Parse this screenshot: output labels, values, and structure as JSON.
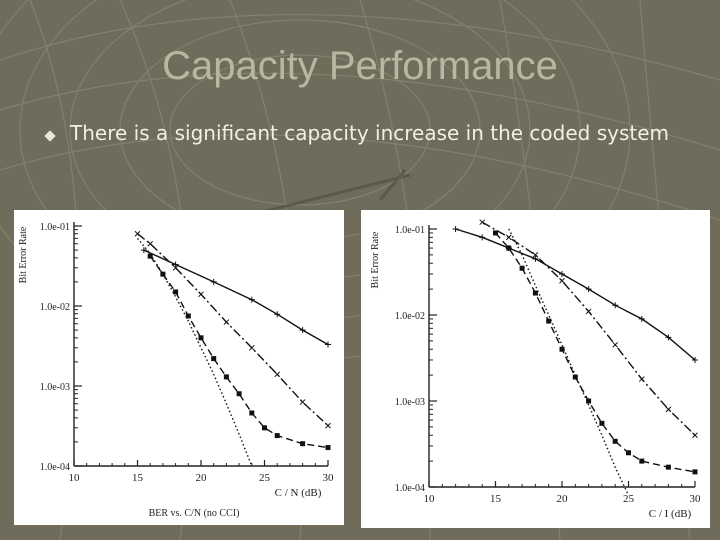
{
  "slide": {
    "title": "Capacity Performance",
    "bullets": [
      {
        "text": "There is a significant capacity increase in the coded system"
      }
    ]
  },
  "chart_data": [
    {
      "type": "line",
      "title": "",
      "caption": "BER vs. C/N (no CCI)",
      "xlabel": "C / N (dB)",
      "ylabel": "Bit Error Rate",
      "xlim": [
        10,
        30
      ],
      "ylim": [
        0.0001,
        0.1
      ],
      "yscale": "log",
      "x_ticks": [
        "10",
        "15",
        "20",
        "25",
        "30"
      ],
      "y_ticks": [
        "1.0e-01",
        "1.0e-02",
        "1.0e-03",
        "1.0e-04"
      ],
      "grid": false,
      "series": [
        {
          "style": "solid",
          "marker": "plus",
          "x": [
            15.5,
            18,
            21,
            24,
            26,
            28,
            30
          ],
          "y": [
            0.05,
            0.033,
            0.02,
            0.012,
            0.0079,
            0.005,
            0.0033
          ]
        },
        {
          "style": "dashdot",
          "marker": "x",
          "x": [
            15,
            16,
            18,
            20,
            22,
            24,
            26,
            28,
            30
          ],
          "y": [
            0.08,
            0.06,
            0.03,
            0.014,
            0.0063,
            0.003,
            0.0014,
            0.00063,
            0.00032
          ]
        },
        {
          "style": "dashed",
          "marker": "square",
          "x": [
            16,
            17,
            18,
            19,
            20,
            21,
            22,
            23,
            24,
            25,
            26,
            28,
            30
          ],
          "y": [
            0.042,
            0.025,
            0.015,
            0.0075,
            0.004,
            0.0022,
            0.0013,
            0.0008,
            0.00046,
            0.0003,
            0.00024,
            0.00019,
            0.00017
          ]
        },
        {
          "style": "dotted",
          "marker": "none",
          "x": [
            15,
            16,
            17,
            18,
            19,
            20,
            21,
            22,
            23,
            24
          ],
          "y": [
            0.07,
            0.045,
            0.025,
            0.013,
            0.0065,
            0.003,
            0.0014,
            0.0006,
            0.00025,
            0.0001
          ]
        }
      ]
    },
    {
      "type": "line",
      "title": "",
      "xlabel": "C / I (dB)",
      "ylabel": "Bit Error Rate",
      "xlim": [
        10,
        30
      ],
      "ylim": [
        0.0001,
        0.1
      ],
      "yscale": "log",
      "x_ticks": [
        "10",
        "15",
        "20",
        "25",
        "30"
      ],
      "y_ticks": [
        "1.0e-01",
        "1.0e-02",
        "1.0e-03",
        "1.0e-04"
      ],
      "grid": false,
      "series": [
        {
          "style": "solid",
          "marker": "plus",
          "x": [
            12,
            14,
            16,
            18,
            20,
            22,
            24,
            26,
            28,
            30
          ],
          "y": [
            0.1,
            0.08,
            0.06,
            0.045,
            0.03,
            0.02,
            0.013,
            0.009,
            0.0055,
            0.003
          ]
        },
        {
          "style": "dashdot",
          "marker": "x",
          "x": [
            14,
            16,
            18,
            20,
            22,
            24,
            26,
            28,
            30
          ],
          "y": [
            0.12,
            0.08,
            0.05,
            0.025,
            0.011,
            0.0045,
            0.0018,
            0.0008,
            0.0004
          ]
        },
        {
          "style": "dashed",
          "marker": "square",
          "x": [
            15,
            16,
            17,
            18,
            19,
            20,
            21,
            22,
            23,
            24,
            25,
            26,
            28,
            30
          ],
          "y": [
            0.09,
            0.06,
            0.035,
            0.018,
            0.0085,
            0.004,
            0.0019,
            0.001,
            0.00055,
            0.00034,
            0.00025,
            0.0002,
            0.00017,
            0.00015
          ]
        },
        {
          "style": "dotted",
          "marker": "none",
          "x": [
            16,
            17,
            18,
            19,
            20,
            21,
            22,
            23,
            24,
            25
          ],
          "y": [
            0.1,
            0.05,
            0.022,
            0.01,
            0.0045,
            0.002,
            0.0009,
            0.0004,
            0.00017,
            8e-05
          ]
        }
      ]
    }
  ]
}
